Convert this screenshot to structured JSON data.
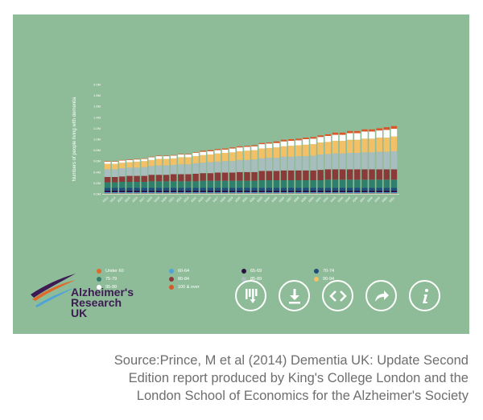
{
  "chart_data": {
    "type": "bar",
    "stacked": true,
    "ylabel": "Numbers of people living with dementia",
    "xlabel": "",
    "ylim": [
      0,
      2.0
    ],
    "y_ticks": [
      "0.0M",
      "0.2M",
      "0.4M",
      "0.6M",
      "0.8M",
      "1.0M",
      "1.2M",
      "1.4M",
      "1.6M",
      "1.8M",
      "2.0M"
    ],
    "y_tick_values": [
      0,
      0.2,
      0.4,
      0.6,
      0.8,
      1.0,
      1.2,
      1.4,
      1.6,
      1.8,
      2.0
    ],
    "categories": [
      "2012",
      "2013",
      "2014",
      "2015",
      "2016",
      "2017",
      "2018",
      "2019",
      "2020",
      "2021",
      "2022",
      "2023",
      "2024",
      "2025",
      "2026",
      "2027",
      "2028",
      "2029",
      "2030",
      "2031",
      "2032",
      "2033",
      "2034",
      "2035",
      "2036",
      "2037",
      "2038",
      "2039",
      "2040",
      "2041",
      "2042",
      "2043",
      "2044",
      "2045",
      "2046",
      "2047",
      "2048",
      "2049",
      "2050",
      "2051"
    ],
    "series": [
      {
        "name": "Under 60",
        "color": "#e0682a",
        "values": [
          0.01,
          0.01,
          0.01,
          0.01,
          0.01,
          0.01,
          0.01,
          0.01,
          0.01,
          0.01,
          0.01,
          0.01,
          0.01,
          0.01,
          0.01,
          0.01,
          0.01,
          0.01,
          0.01,
          0.01,
          0.01,
          0.01,
          0.01,
          0.01,
          0.01,
          0.01,
          0.01,
          0.01,
          0.01,
          0.01,
          0.01,
          0.01,
          0.01,
          0.01,
          0.01,
          0.01,
          0.01,
          0.01,
          0.01,
          0.01
        ]
      },
      {
        "name": "60-64",
        "color": "#4ea4d8",
        "values": [
          0.02,
          0.02,
          0.02,
          0.02,
          0.02,
          0.02,
          0.02,
          0.02,
          0.02,
          0.02,
          0.02,
          0.02,
          0.02,
          0.02,
          0.02,
          0.02,
          0.02,
          0.02,
          0.02,
          0.02,
          0.02,
          0.02,
          0.02,
          0.02,
          0.02,
          0.02,
          0.02,
          0.02,
          0.02,
          0.02,
          0.02,
          0.02,
          0.02,
          0.02,
          0.02,
          0.02,
          0.02,
          0.02,
          0.02,
          0.02
        ]
      },
      {
        "name": "65-69",
        "color": "#2a1140",
        "values": [
          0.03,
          0.03,
          0.03,
          0.03,
          0.03,
          0.03,
          0.03,
          0.03,
          0.03,
          0.03,
          0.03,
          0.03,
          0.03,
          0.03,
          0.03,
          0.03,
          0.03,
          0.03,
          0.03,
          0.03,
          0.03,
          0.03,
          0.03,
          0.03,
          0.03,
          0.03,
          0.03,
          0.03,
          0.03,
          0.03,
          0.03,
          0.03,
          0.03,
          0.03,
          0.03,
          0.03,
          0.03,
          0.03,
          0.03,
          0.03
        ]
      },
      {
        "name": "70-74",
        "color": "#1f4d7a",
        "values": [
          0.05,
          0.05,
          0.05,
          0.05,
          0.05,
          0.05,
          0.05,
          0.05,
          0.05,
          0.05,
          0.05,
          0.05,
          0.05,
          0.05,
          0.05,
          0.05,
          0.05,
          0.05,
          0.05,
          0.05,
          0.05,
          0.05,
          0.05,
          0.05,
          0.05,
          0.05,
          0.05,
          0.05,
          0.05,
          0.05,
          0.05,
          0.05,
          0.05,
          0.05,
          0.05,
          0.05,
          0.05,
          0.05,
          0.05,
          0.05
        ]
      },
      {
        "name": "75-79",
        "color": "#2f7f6d",
        "values": [
          0.1,
          0.1,
          0.11,
          0.11,
          0.11,
          0.11,
          0.12,
          0.12,
          0.12,
          0.12,
          0.12,
          0.12,
          0.12,
          0.13,
          0.13,
          0.13,
          0.13,
          0.13,
          0.13,
          0.13,
          0.13,
          0.14,
          0.14,
          0.14,
          0.14,
          0.14,
          0.14,
          0.14,
          0.14,
          0.14,
          0.15,
          0.15,
          0.15,
          0.15,
          0.15,
          0.15,
          0.15,
          0.15,
          0.15,
          0.15
        ]
      },
      {
        "name": "80-84",
        "color": "#8b3a3a",
        "values": [
          0.1,
          0.1,
          0.1,
          0.11,
          0.11,
          0.11,
          0.12,
          0.12,
          0.12,
          0.13,
          0.13,
          0.13,
          0.14,
          0.14,
          0.14,
          0.15,
          0.15,
          0.15,
          0.16,
          0.16,
          0.16,
          0.17,
          0.17,
          0.17,
          0.18,
          0.18,
          0.18,
          0.18,
          0.18,
          0.19,
          0.19,
          0.19,
          0.19,
          0.19,
          0.19,
          0.19,
          0.19,
          0.19,
          0.19,
          0.19
        ]
      },
      {
        "name": "85-89",
        "color": "#a8bdbd",
        "values": [
          0.14,
          0.14,
          0.15,
          0.15,
          0.15,
          0.16,
          0.16,
          0.17,
          0.17,
          0.17,
          0.18,
          0.18,
          0.19,
          0.19,
          0.2,
          0.2,
          0.21,
          0.21,
          0.22,
          0.22,
          0.23,
          0.23,
          0.24,
          0.24,
          0.25,
          0.25,
          0.26,
          0.26,
          0.27,
          0.28,
          0.28,
          0.29,
          0.29,
          0.3,
          0.3,
          0.31,
          0.31,
          0.32,
          0.32,
          0.33
        ]
      },
      {
        "name": "90-94",
        "color": "#f2c067",
        "values": [
          0.1,
          0.1,
          0.1,
          0.1,
          0.11,
          0.11,
          0.11,
          0.12,
          0.12,
          0.12,
          0.13,
          0.13,
          0.13,
          0.14,
          0.14,
          0.15,
          0.15,
          0.16,
          0.16,
          0.17,
          0.17,
          0.18,
          0.18,
          0.19,
          0.19,
          0.2,
          0.2,
          0.21,
          0.21,
          0.22,
          0.22,
          0.23,
          0.23,
          0.24,
          0.24,
          0.25,
          0.25,
          0.26,
          0.26,
          0.27
        ]
      },
      {
        "name": "95-99",
        "color": "#ffffff",
        "values": [
          0.04,
          0.04,
          0.04,
          0.04,
          0.04,
          0.04,
          0.05,
          0.05,
          0.05,
          0.05,
          0.05,
          0.05,
          0.06,
          0.06,
          0.06,
          0.06,
          0.06,
          0.07,
          0.07,
          0.07,
          0.07,
          0.08,
          0.08,
          0.08,
          0.09,
          0.09,
          0.09,
          0.1,
          0.1,
          0.1,
          0.11,
          0.11,
          0.11,
          0.12,
          0.12,
          0.13,
          0.13,
          0.13,
          0.14,
          0.14
        ]
      },
      {
        "name": "100 & over",
        "color": "#d9582a",
        "values": [
          0.01,
          0.01,
          0.01,
          0.01,
          0.01,
          0.01,
          0.01,
          0.01,
          0.01,
          0.01,
          0.01,
          0.01,
          0.01,
          0.02,
          0.02,
          0.02,
          0.02,
          0.02,
          0.02,
          0.02,
          0.02,
          0.02,
          0.02,
          0.03,
          0.03,
          0.03,
          0.03,
          0.03,
          0.03,
          0.03,
          0.03,
          0.04,
          0.04,
          0.04,
          0.04,
          0.04,
          0.04,
          0.04,
          0.05,
          0.05
        ]
      }
    ],
    "legend_placement": "bottom",
    "grid": false
  },
  "logo": {
    "line1": "Alzheimer's",
    "line2": "Research",
    "line3": "UK",
    "colors": [
      "#3d1a53",
      "#e0682a",
      "#4ea4d8"
    ]
  },
  "toolbar": {
    "buttons": [
      {
        "icon": "chart-data-icon"
      },
      {
        "icon": "download-icon"
      },
      {
        "icon": "embed-code-icon"
      },
      {
        "icon": "share-icon"
      },
      {
        "icon": "info-icon"
      }
    ]
  },
  "colors": {
    "panel_background": "#8fbc98",
    "source_text": "#6e6e6e"
  },
  "source": {
    "line1": "Source:Prince, M et al (2014) Dementia UK: Update Second",
    "line2": "Edition report produced by King's College London and the",
    "line3": "London School of Economics for the Alzheimer's Society"
  }
}
